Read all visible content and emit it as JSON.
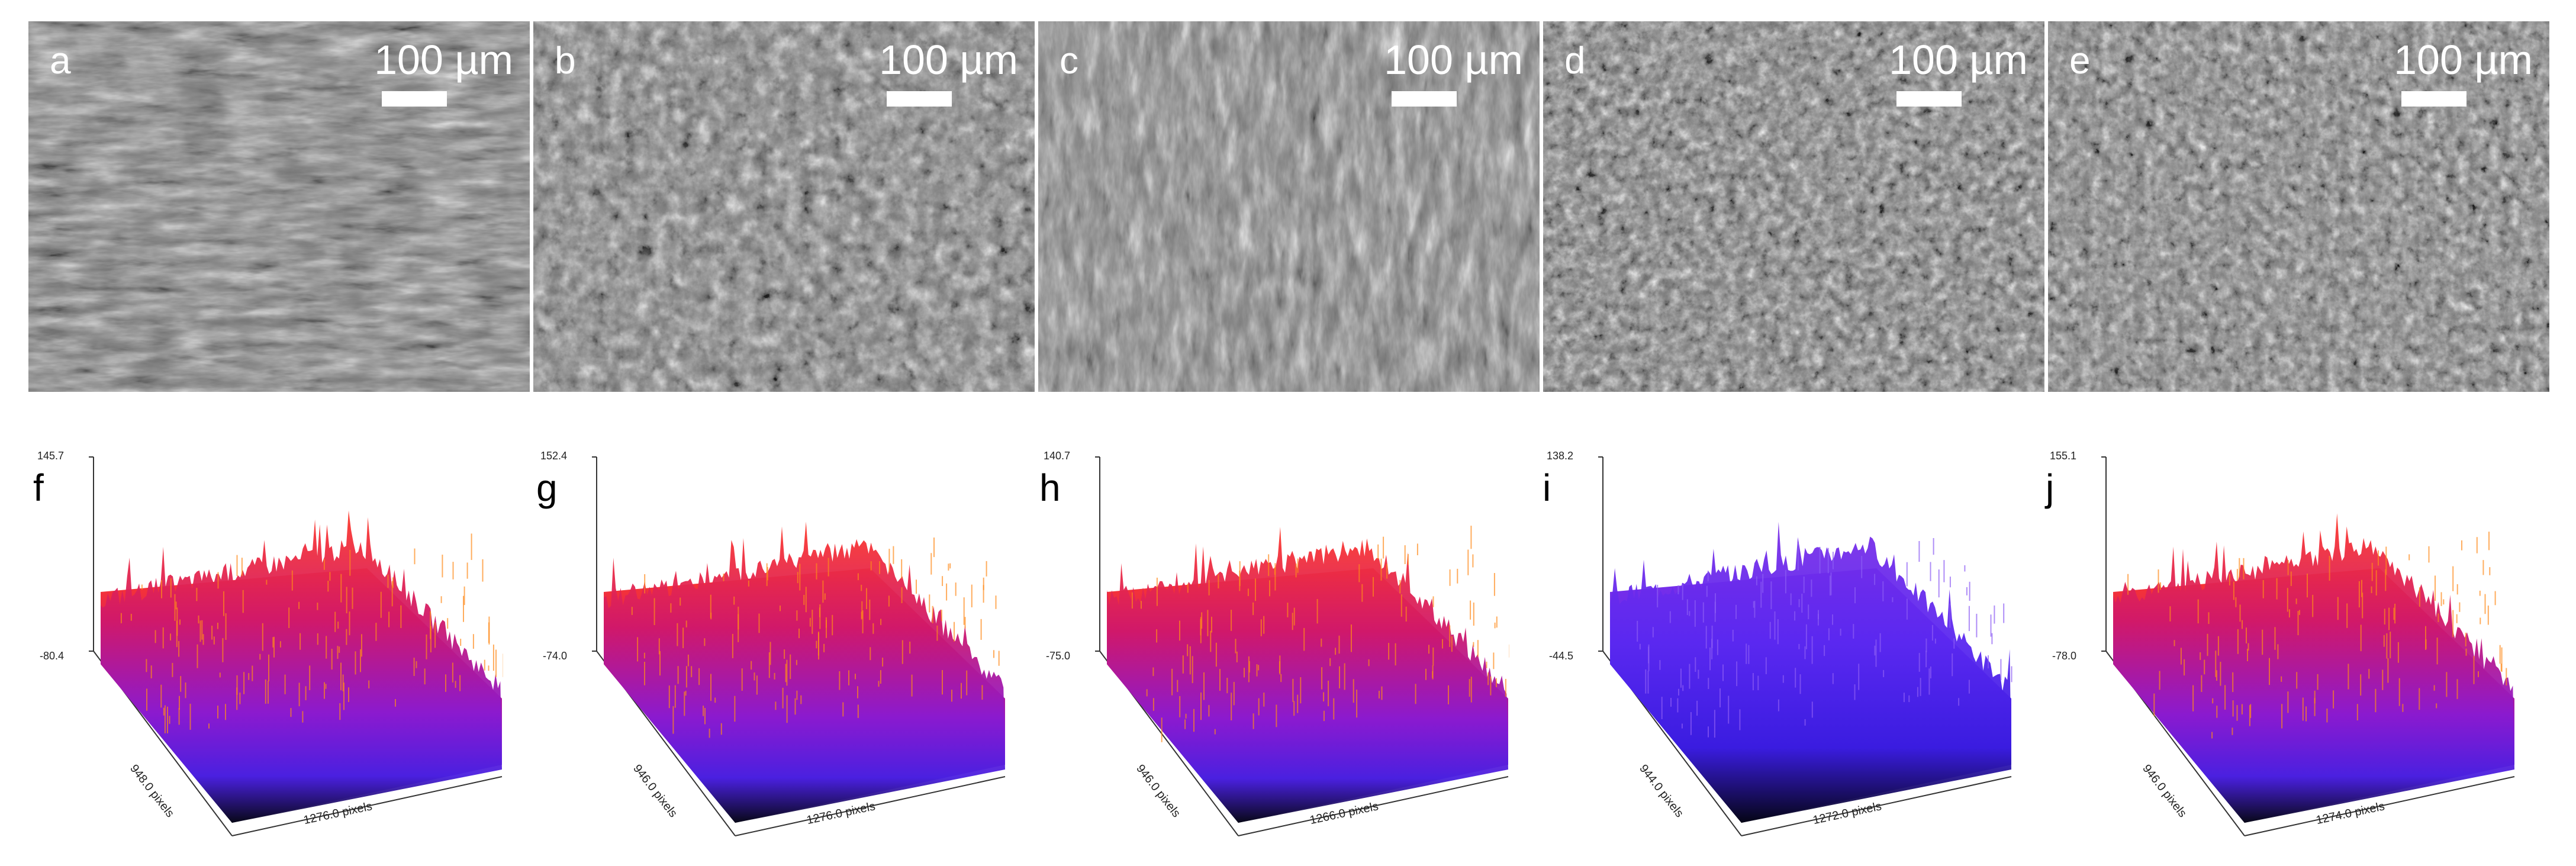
{
  "sem_panels": [
    {
      "letter": "a",
      "scale": "100 µm"
    },
    {
      "letter": "b",
      "scale": "100 µm"
    },
    {
      "letter": "c",
      "scale": "100 µm"
    },
    {
      "letter": "d",
      "scale": "100 µm"
    },
    {
      "letter": "e",
      "scale": "100 µm"
    }
  ],
  "surface_plots": [
    {
      "letter": "f",
      "z_max": "145.7",
      "z_min": "-80.4",
      "y_axis": "948.0 pixels",
      "x_axis": "1276.0 pixels",
      "palette": "warm"
    },
    {
      "letter": "g",
      "z_max": "152.4",
      "z_min": "-74.0",
      "y_axis": "946.0 pixels",
      "x_axis": "1276.0 pixels",
      "palette": "warm"
    },
    {
      "letter": "h",
      "z_max": "140.7",
      "z_min": "-75.0",
      "y_axis": "946.0 pixels",
      "x_axis": "1266.0 pixels",
      "palette": "warm"
    },
    {
      "letter": "i",
      "z_max": "138.2",
      "z_min": "-44.5",
      "y_axis": "944.0 pixels",
      "x_axis": "1272.0 pixels",
      "palette": "cool"
    },
    {
      "letter": "j",
      "z_max": "155.1",
      "z_min": "-78.0",
      "y_axis": "946.0 pixels",
      "x_axis": "1274.0 pixels",
      "palette": "warm"
    }
  ]
}
